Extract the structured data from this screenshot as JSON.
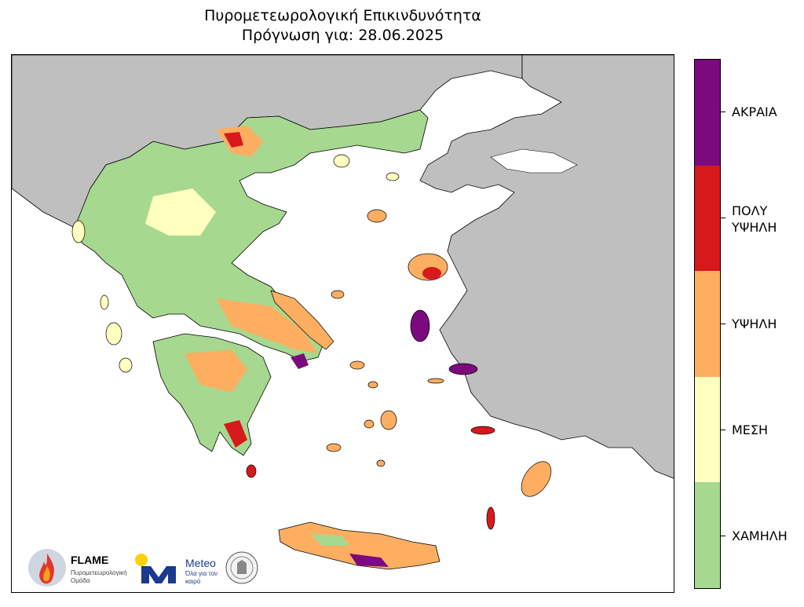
{
  "title": {
    "line1": "Πυρομετεωρολογική Επικινδυνότητα",
    "line2": "Πρόγνωση για: 28.06.2025"
  },
  "legend": [
    {
      "label": "ΑΚΡΑΙΑ",
      "color": "#7b0a7e"
    },
    {
      "label": "ΠΟΛΥ\nΥΨΗΛΗ",
      "color": "#d7191c"
    },
    {
      "label": "ΥΨΗΛΗ",
      "color": "#fdae61"
    },
    {
      "label": "ΜΕΣΗ",
      "color": "#ffffc0"
    },
    {
      "label": "ΧΑΜΗΛΗ",
      "color": "#a6d98f"
    }
  ],
  "colors": {
    "neighbor_land": "#bfbfbf",
    "sea": "#ffffff"
  },
  "logos": {
    "flame_name": "FLAME",
    "flame_subtitle": "Πυρομετεωρολογική Ομάδα",
    "meteo_name": "Meteo",
    "meteo_subtitle": "Όλα για τον καιρό"
  }
}
